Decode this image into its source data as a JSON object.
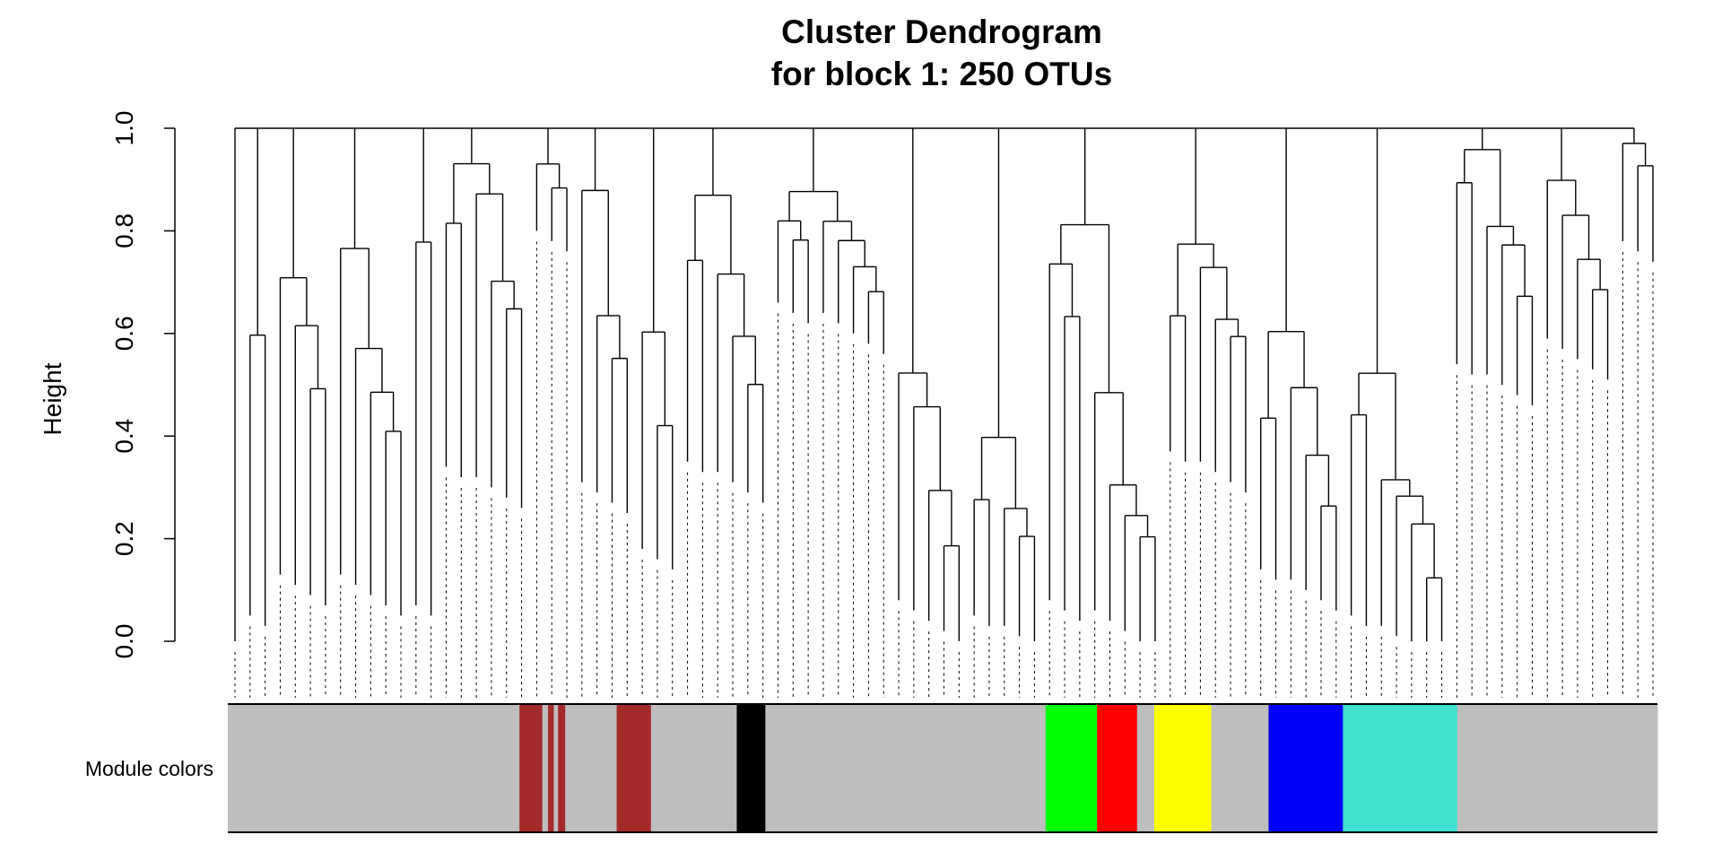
{
  "chart_data": {
    "type": "dendrogram",
    "title": "Cluster Dendrogram",
    "subtitle": "for block 1: 250 OTUs",
    "ylabel": "Height",
    "xlabel": "",
    "ylim": [
      0,
      1
    ],
    "y_ticks": [
      "0.0",
      "0.2",
      "0.4",
      "0.6",
      "0.8",
      "1.0"
    ],
    "y_tick_values": [
      0,
      0.2,
      0.4,
      0.6,
      0.8,
      1.0
    ],
    "color_bar_label": "Module colors",
    "root_height": 1.0,
    "clusters": [
      {
        "module": "grey",
        "color": "#bebebe",
        "min_height": 0.0,
        "leaves": 1
      },
      {
        "module": "grey",
        "color": "#bebebe",
        "min_height": 0.08,
        "leaves": 2
      },
      {
        "module": "grey",
        "color": "#bebebe",
        "min_height": 0.16,
        "leaves": 4
      },
      {
        "module": "grey",
        "color": "#bebebe",
        "min_height": 0.16,
        "leaves": 5
      },
      {
        "module": "grey",
        "color": "#bebebe",
        "min_height": 0.1,
        "leaves": 2
      },
      {
        "module": "brown",
        "color": "#a52a2a",
        "min_height": 0.37,
        "leaves": 6
      },
      {
        "module": "grey",
        "color": "#bebebe",
        "min_height": 0.83,
        "leaves": 3
      },
      {
        "module": "grey",
        "color": "#bebebe",
        "min_height": 0.34,
        "leaves": 4
      },
      {
        "module": "black",
        "color": "#000000",
        "min_height": 0.21,
        "leaves": 3
      },
      {
        "module": "grey",
        "color": "#bebebe",
        "min_height": 0.38,
        "leaves": 6
      },
      {
        "module": "grey",
        "color": "#bebebe",
        "min_height": 0.69,
        "leaves": 8
      },
      {
        "module": "green",
        "color": "#00ff00",
        "min_height": 0.11,
        "leaves": 5
      },
      {
        "module": "red",
        "color": "#ff0000",
        "min_height": 0.08,
        "leaves": 5
      },
      {
        "module": "yellow",
        "color": "#ffff00",
        "min_height": 0.11,
        "leaves": 8
      },
      {
        "module": "grey",
        "color": "#bebebe",
        "min_height": 0.4,
        "leaves": 6
      },
      {
        "module": "blue",
        "color": "#0000ff",
        "min_height": 0.17,
        "leaves": 6
      },
      {
        "module": "turquoise",
        "color": "#40e0d0",
        "min_height": 0.08,
        "leaves": 7
      },
      {
        "module": "grey",
        "color": "#bebebe",
        "min_height": 0.57,
        "leaves": 6
      },
      {
        "module": "grey",
        "color": "#bebebe",
        "min_height": 0.62,
        "leaves": 5
      },
      {
        "module": "grey",
        "color": "#bebebe",
        "min_height": 0.81,
        "leaves": 3
      }
    ],
    "module_color_segments": [
      {
        "module": "grey",
        "color": "#bebebe",
        "from": 0.0,
        "to": 0.204
      },
      {
        "module": "brown",
        "color": "#a52a2a",
        "from": 0.204,
        "to": 0.22
      },
      {
        "module": "grey",
        "color": "#bebebe",
        "from": 0.22,
        "to": 0.224
      },
      {
        "module": "brown",
        "color": "#a52a2a",
        "from": 0.224,
        "to": 0.228
      },
      {
        "module": "grey",
        "color": "#bebebe",
        "from": 0.228,
        "to": 0.231
      },
      {
        "module": "brown",
        "color": "#a52a2a",
        "from": 0.231,
        "to": 0.236
      },
      {
        "module": "grey",
        "color": "#bebebe",
        "from": 0.236,
        "to": 0.272
      },
      {
        "module": "brown",
        "color": "#a52a2a",
        "from": 0.272,
        "to": 0.296
      },
      {
        "module": "grey",
        "color": "#bebebe",
        "from": 0.296,
        "to": 0.356
      },
      {
        "module": "black",
        "color": "#000000",
        "from": 0.356,
        "to": 0.376
      },
      {
        "module": "grey",
        "color": "#bebebe",
        "from": 0.376,
        "to": 0.572
      },
      {
        "module": "green",
        "color": "#00ff00",
        "from": 0.572,
        "to": 0.608
      },
      {
        "module": "red",
        "color": "#ff0000",
        "from": 0.608,
        "to": 0.636
      },
      {
        "module": "grey",
        "color": "#bebebe",
        "from": 0.636,
        "to": 0.648
      },
      {
        "module": "yellow",
        "color": "#ffff00",
        "from": 0.648,
        "to": 0.688
      },
      {
        "module": "grey",
        "color": "#bebebe",
        "from": 0.688,
        "to": 0.728
      },
      {
        "module": "blue",
        "color": "#0000ff",
        "from": 0.728,
        "to": 0.78
      },
      {
        "module": "turquoise",
        "color": "#40e0d0",
        "from": 0.78,
        "to": 0.86
      },
      {
        "module": "grey",
        "color": "#bebebe",
        "from": 0.86,
        "to": 1.0
      }
    ]
  }
}
